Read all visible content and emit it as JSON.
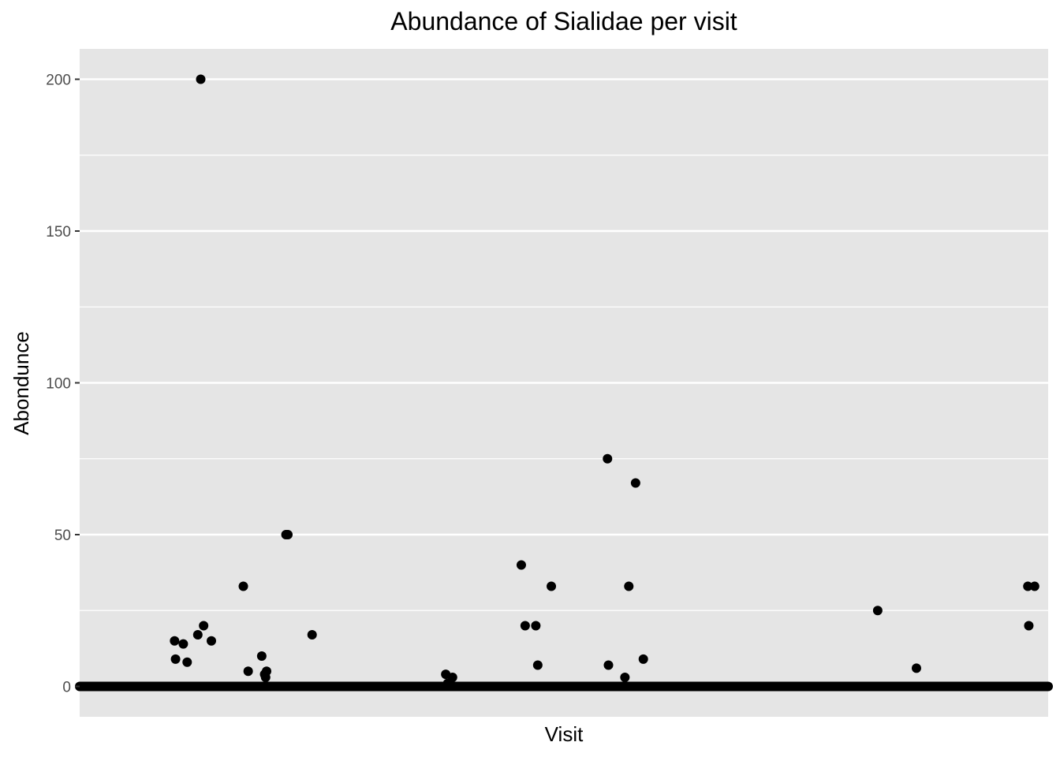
{
  "chart_data": {
    "type": "scatter",
    "title": "Abundance of Sialidae per visit",
    "xlabel": "Visit",
    "ylabel": "Abondunce",
    "ylim": [
      -10,
      210
    ],
    "xlim": [
      0,
      1000
    ],
    "y_ticks": [
      0,
      50,
      100,
      150,
      200
    ],
    "y_tick_labels": [
      "0",
      "50",
      "100",
      "150",
      "200"
    ],
    "x_ticks": [],
    "grid": true,
    "legend": "none",
    "panel_color": "#e5e5e5",
    "grid_color": "#ffffff",
    "point_color": "#000000",
    "zero_band": {
      "y": 0,
      "x_from": 0,
      "x_to": 1000
    },
    "points": [
      {
        "x": 98,
        "y": 15
      },
      {
        "x": 99,
        "y": 9
      },
      {
        "x": 107,
        "y": 14
      },
      {
        "x": 111,
        "y": 8
      },
      {
        "x": 122,
        "y": 17
      },
      {
        "x": 125,
        "y": 200
      },
      {
        "x": 128,
        "y": 20
      },
      {
        "x": 136,
        "y": 15
      },
      {
        "x": 169,
        "y": 33
      },
      {
        "x": 174,
        "y": 5
      },
      {
        "x": 188,
        "y": 10
      },
      {
        "x": 191,
        "y": 4
      },
      {
        "x": 192,
        "y": 3
      },
      {
        "x": 193,
        "y": 5
      },
      {
        "x": 213,
        "y": 50
      },
      {
        "x": 215,
        "y": 50
      },
      {
        "x": 240,
        "y": 17
      },
      {
        "x": 378,
        "y": 4
      },
      {
        "x": 380,
        "y": 1
      },
      {
        "x": 385,
        "y": 3
      },
      {
        "x": 456,
        "y": 40
      },
      {
        "x": 460,
        "y": 20
      },
      {
        "x": 471,
        "y": 20
      },
      {
        "x": 473,
        "y": 7
      },
      {
        "x": 487,
        "y": 33
      },
      {
        "x": 545,
        "y": 75
      },
      {
        "x": 546,
        "y": 7
      },
      {
        "x": 563,
        "y": 3
      },
      {
        "x": 567,
        "y": 33
      },
      {
        "x": 574,
        "y": 67
      },
      {
        "x": 582,
        "y": 9
      },
      {
        "x": 824,
        "y": 25
      },
      {
        "x": 864,
        "y": 6
      },
      {
        "x": 979,
        "y": 33
      },
      {
        "x": 980,
        "y": 20
      },
      {
        "x": 986,
        "y": 33
      }
    ]
  }
}
